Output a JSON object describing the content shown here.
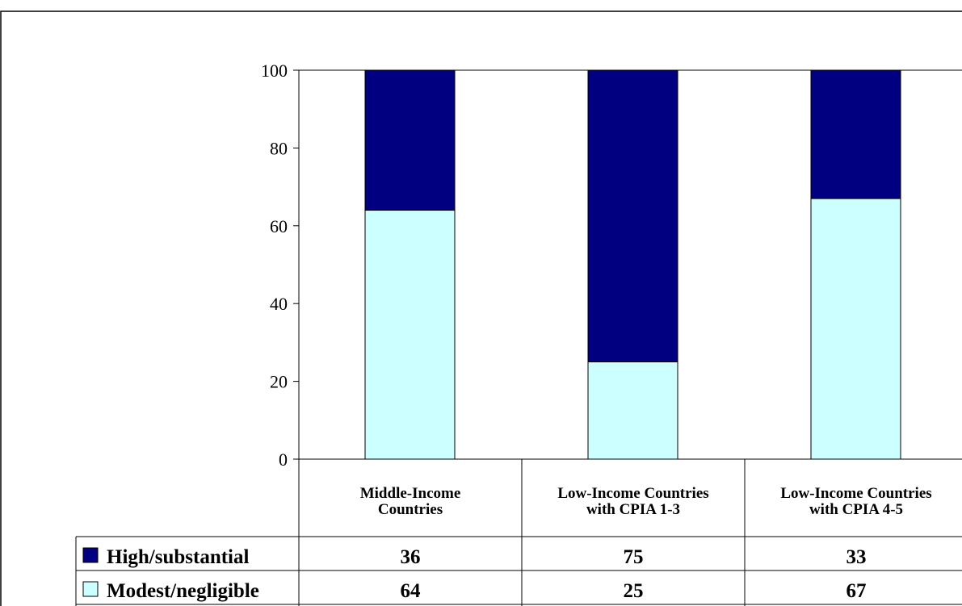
{
  "chart_data": {
    "type": "bar",
    "stacked": true,
    "categories": [
      [
        "Middle-Income",
        "Countries"
      ],
      [
        "Low-Income Countries",
        "with CPIA 1-3"
      ],
      [
        "Low-Income Countries",
        "with CPIA 4-5"
      ]
    ],
    "series": [
      {
        "name": "Modest/negligible",
        "values": [
          64,
          25,
          67
        ],
        "color": "#ccffff"
      },
      {
        "name": "High/substantial",
        "values": [
          36,
          75,
          33
        ],
        "color": "#000080"
      }
    ],
    "ylim": [
      0,
      100
    ],
    "yticks": [
      0,
      20,
      40,
      60,
      80,
      100
    ],
    "grid": false,
    "data_table": true
  }
}
